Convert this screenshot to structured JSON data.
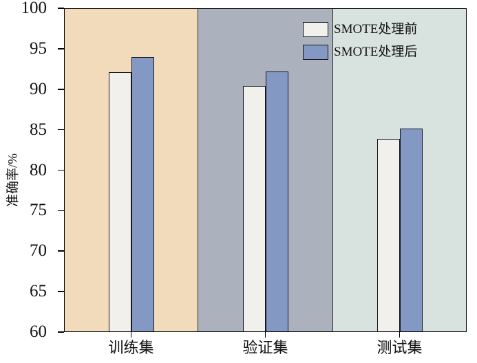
{
  "chart_data": {
    "type": "bar",
    "title": "",
    "xlabel": "",
    "ylabel": "准确率/%",
    "categories": [
      "训练集",
      "验证集",
      "测试集"
    ],
    "series": [
      {
        "name": "SMOTE处理前",
        "color": "#f1f0ec",
        "values": [
          92.1,
          90.4,
          83.9
        ]
      },
      {
        "name": "SMOTE处理后",
        "color": "#8498c4",
        "values": [
          94.0,
          92.2,
          85.1
        ]
      }
    ],
    "ylim": [
      60,
      100
    ],
    "yticks": [
      100,
      95,
      90,
      85,
      80,
      75,
      70,
      65,
      60
    ],
    "grid": false,
    "legend_position": "top-right",
    "background_bands": [
      "#f2dbbb",
      "#abb1bd",
      "#d8e3e0"
    ],
    "bar_border_color": "#15151f",
    "axis_color": "#000000"
  }
}
